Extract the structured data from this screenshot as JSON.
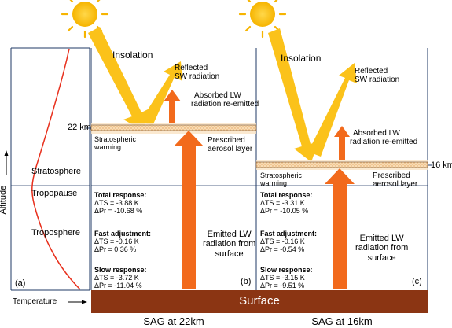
{
  "left_panel": {
    "panel_label": "(a)",
    "altitude_label": "Altitude",
    "layers": {
      "stratosphere": "Stratosphere",
      "tropopause": "Tropopause",
      "troposphere": "Troposphere"
    },
    "temperature_label": "Temperature"
  },
  "surface_label": "Surface",
  "panels": [
    {
      "panel_label": "(b)",
      "caption": "SAG at 22km",
      "height_label": "22 km",
      "insolation": "Insolation",
      "reflected_line1": "Reflected",
      "reflected_line2": "SW radiation",
      "absorbed_line1": "Absorbed LW",
      "absorbed_line2": "radiation re-emitted",
      "warming_line1": "Stratospheric",
      "warming_line2": "warming",
      "aerosol_line1": "Prescribed",
      "aerosol_line2": "aerosol layer",
      "emitted_line1": "Emitted LW",
      "emitted_line2": "radiation from",
      "emitted_line3": "surface",
      "total_title": "Total response:",
      "total_ts": "ΔTS = -3.88 K",
      "total_pr": "ΔPr = -10.68 %",
      "fast_title": "Fast adjustment:",
      "fast_ts": "ΔTS = -0.16 K",
      "fast_pr": "ΔPr = 0.36 %",
      "slow_title": "Slow response:",
      "slow_ts": "ΔTS = -3.72 K",
      "slow_pr": "ΔPr = -11.04 %"
    },
    {
      "panel_label": "(c)",
      "caption": "SAG at 16km",
      "height_label": "16 km",
      "insolation": "Insolation",
      "reflected_line1": "Reflected",
      "reflected_line2": "SW radiation",
      "absorbed_line1": "Absorbed LW",
      "absorbed_line2": "radiation re-emitted",
      "warming_line1": "Stratospheric",
      "warming_line2": "warming",
      "aerosol_line1": "Prescribed",
      "aerosol_line2": "aerosol layer",
      "emitted_line1": "Emitted LW",
      "emitted_line2": "radiation from",
      "emitted_line3": "surface",
      "total_title": "Total response:",
      "total_ts": "ΔTS = -3.31 K",
      "total_pr": "ΔPr = -10.05 %",
      "fast_title": "Fast adjustment:",
      "fast_ts": "ΔTS = -0.16 K",
      "fast_pr": "ΔPr = -0.54 %",
      "slow_title": "Slow response:",
      "slow_ts": "ΔTS = -3.15 K",
      "slow_pr": "ΔPr = -9.51 %"
    }
  ],
  "colors": {
    "sun": "#fcc400",
    "sw_arrow": "#fbc21a",
    "lw_arrow": "#f26a1c",
    "aerosol_layer": "#f7d5a6",
    "surface": "#8b3513",
    "temperature_profile": "#e8301d",
    "frame": "#1f3864"
  }
}
